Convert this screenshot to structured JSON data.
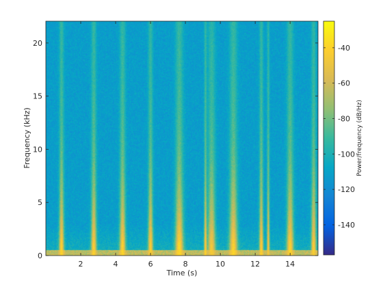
{
  "chart_data": {
    "type": "heatmap",
    "subtype": "spectrogram",
    "title": "",
    "xlabel": "Time (s)",
    "ylabel": "Frequency (kHz)",
    "colorbar_label": "Power/frequency (dB/Hz)",
    "colormap": "parula",
    "xlim": [
      0,
      15.6
    ],
    "ylim": [
      0,
      22.05
    ],
    "clim": [
      -157,
      -25
    ],
    "x_ticks": [
      2,
      4,
      6,
      8,
      10,
      12,
      14
    ],
    "y_ticks": [
      0,
      5,
      10,
      15,
      20
    ],
    "colorbar_ticks": [
      -140,
      -120,
      -100,
      -80,
      -60,
      -40
    ],
    "background_level_db": -112,
    "low_band": {
      "max_khz": 0.5,
      "level_db": -55
    },
    "events": [
      {
        "t": 0.9,
        "width_s": 0.18,
        "top_khz": 22,
        "peak_db": -40
      },
      {
        "t": 2.75,
        "width_s": 0.2,
        "top_khz": 22,
        "peak_db": -42
      },
      {
        "t": 4.4,
        "width_s": 0.22,
        "top_khz": 22,
        "peak_db": -40
      },
      {
        "t": 6.0,
        "width_s": 0.18,
        "top_khz": 22,
        "peak_db": -42
      },
      {
        "t": 7.65,
        "width_s": 0.3,
        "top_khz": 22,
        "peak_db": -38
      },
      {
        "t": 9.15,
        "width_s": 0.1,
        "top_khz": 22,
        "peak_db": -40
      },
      {
        "t": 9.5,
        "width_s": 0.28,
        "top_khz": 20,
        "peak_db": -45
      },
      {
        "t": 10.75,
        "width_s": 0.3,
        "top_khz": 22,
        "peak_db": -40
      },
      {
        "t": 12.35,
        "width_s": 0.15,
        "top_khz": 22,
        "peak_db": -42
      },
      {
        "t": 12.75,
        "width_s": 0.1,
        "top_khz": 22,
        "peak_db": -45
      },
      {
        "t": 14.0,
        "width_s": 0.25,
        "top_khz": 22,
        "peak_db": -40
      },
      {
        "t": 15.35,
        "width_s": 0.18,
        "top_khz": 22,
        "peak_db": -42
      }
    ],
    "grid": false,
    "colorbar_position": "right"
  }
}
